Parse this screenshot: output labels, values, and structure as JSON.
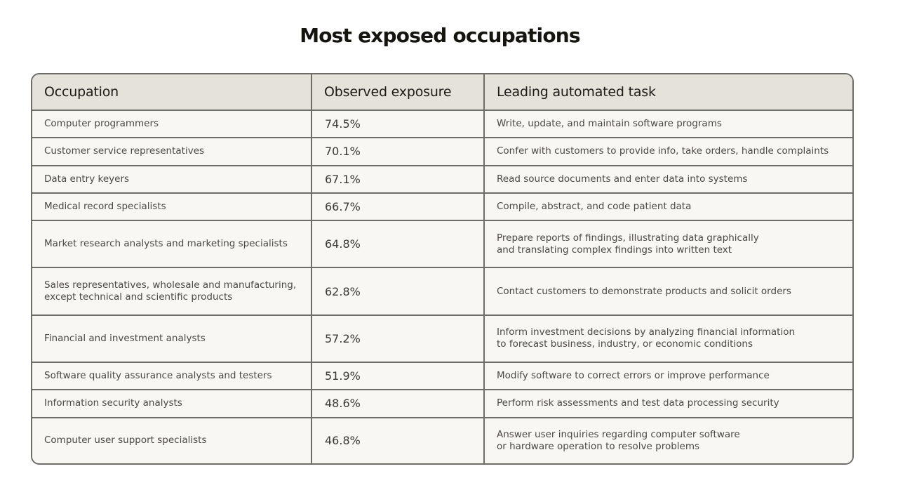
{
  "title": "Most exposed occupations",
  "columns": [
    "Occupation",
    "Observed exposure",
    "Leading automated task"
  ],
  "rows": [
    {
      "occupation": [
        "Computer programmers"
      ],
      "exposure": "74.5%",
      "task": [
        "Write, update, and maintain software programs"
      ]
    },
    {
      "occupation": [
        "Customer service representatives"
      ],
      "exposure": "70.1%",
      "task": [
        "Confer with customers to provide info, take orders, handle complaints"
      ]
    },
    {
      "occupation": [
        "Data entry keyers"
      ],
      "exposure": "67.1%",
      "task": [
        "Read source documents and enter data into systems"
      ]
    },
    {
      "occupation": [
        "Medical record specialists"
      ],
      "exposure": "66.7%",
      "task": [
        "Compile, abstract, and code patient data"
      ]
    },
    {
      "occupation": [
        "Market research analysts and marketing specialists"
      ],
      "exposure": "64.8%",
      "task": [
        "Prepare reports of findings, illustrating data graphically",
        "and translating complex findings into written text"
      ]
    },
    {
      "occupation": [
        "Sales representatives, wholesale and manufacturing,",
        "except technical and scientific products"
      ],
      "exposure": "62.8%",
      "task": [
        "Contact customers to demonstrate products and solicit orders"
      ]
    },
    {
      "occupation": [
        "Financial and investment analysts"
      ],
      "exposure": "57.2%",
      "task": [
        "Inform investment decisions by analyzing financial information",
        "to forecast business, industry, or economic conditions"
      ]
    },
    {
      "occupation": [
        "Software quality assurance analysts and testers"
      ],
      "exposure": "51.9%",
      "task": [
        "Modify software to correct errors or improve performance"
      ]
    },
    {
      "occupation": [
        "Information security analysts"
      ],
      "exposure": "48.6%",
      "task": [
        "Perform risk assessments and test data processing security"
      ]
    },
    {
      "occupation": [
        "Computer user support specialists"
      ],
      "exposure": "46.8%",
      "task": [
        "Answer user inquiries regarding computer software",
        "or hardware operation to resolve problems"
      ]
    }
  ]
}
